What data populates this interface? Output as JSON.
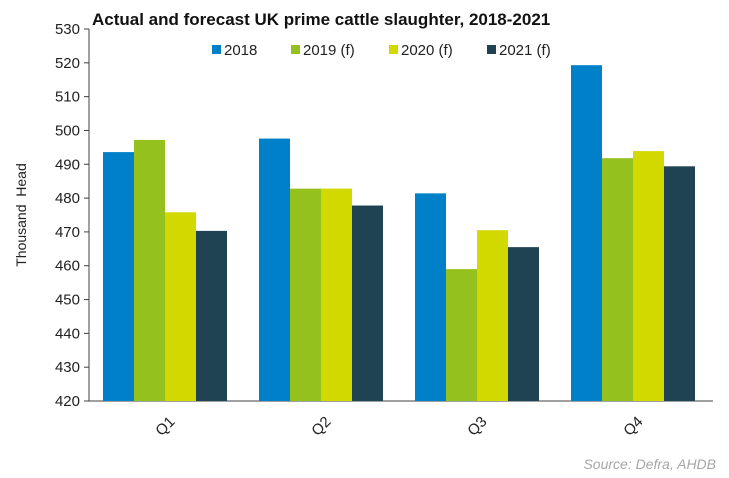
{
  "chart_data": {
    "type": "bar",
    "title": "Actual and forecast UK prime cattle slaughter, 2018-2021",
    "xlabel": "",
    "ylabel": "Thousand  Head",
    "ylim": [
      420,
      530
    ],
    "yticks": [
      420,
      430,
      440,
      450,
      460,
      470,
      480,
      490,
      500,
      510,
      520,
      530
    ],
    "categories": [
      "Q1",
      "Q2",
      "Q3",
      "Q4"
    ],
    "series": [
      {
        "name": "2018",
        "color": "#0080c8",
        "values": [
          493.6,
          497.6,
          481.4,
          519.3
        ]
      },
      {
        "name": "2019 (f)",
        "color": "#95c11f",
        "values": [
          497.2,
          482.8,
          459.0,
          491.8
        ]
      },
      {
        "name": "2020 (f)",
        "color": "#d2d900",
        "values": [
          475.8,
          482.8,
          470.5,
          493.9
        ]
      },
      {
        "name": "2021 (f)",
        "color": "#1f4352",
        "values": [
          470.3,
          477.8,
          465.5,
          489.4
        ]
      }
    ],
    "grid": false,
    "legend_position": "top-center",
    "source": "Source: Defra, AHDB"
  }
}
